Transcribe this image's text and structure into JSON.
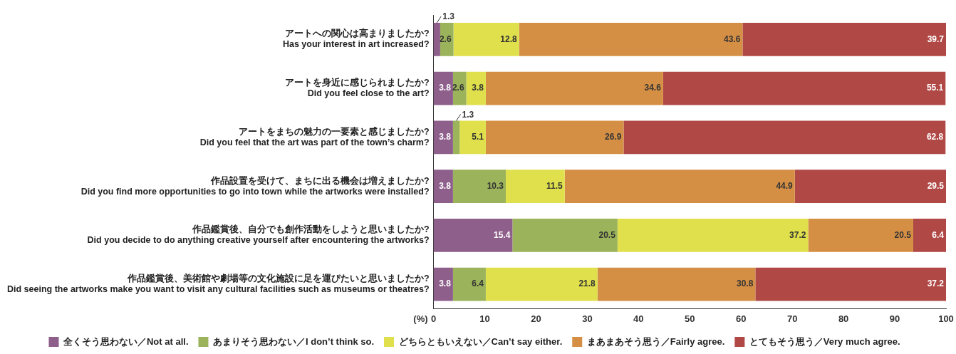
{
  "chart_data": {
    "type": "bar",
    "orientation": "horizontal",
    "stacked": true,
    "categories": [
      "アートへの関心は高まりましたか?\nHas your interest in art increased?",
      "アートを身近に感じられましたか?\nDid you feel close to the art?",
      "アートをまちの魅力の一要素と感じましたか?\nDid you feel that the art was part of the town’s charm?",
      "作品設置を受けて、まちに出る機会は増えましたか?\nDid you find more opportunities to go into town while the artworks were installed?",
      "作品鑑賞後、自分でも創作活動をしようと思いましたか?\nDid you decide to do anything creative yourself after encountering the artworks?",
      "作品鑑賞後、美術館や劇場等の文化施設に足を運びたいと思いましたか?\nDid seeing the artworks make you want to visit any cultural facilities such as museums or theatres?"
    ],
    "series": [
      {
        "name": "全くそう思わない／Not at all.",
        "color": "#8e5f8b",
        "values": [
          1.3,
          3.8,
          3.8,
          3.8,
          15.4,
          3.8
        ]
      },
      {
        "name": "あまりそう思わない／I don’t think so.",
        "color": "#9bb35a",
        "values": [
          2.6,
          2.6,
          1.3,
          10.3,
          20.5,
          6.4
        ]
      },
      {
        "name": "どちらともいえない／Can’t say either.",
        "color": "#dfe04c",
        "values": [
          12.8,
          3.8,
          5.1,
          11.5,
          37.2,
          21.8
        ]
      },
      {
        "name": "まあまあそう思う／Fairly agree.",
        "color": "#d58f45",
        "values": [
          43.6,
          34.6,
          26.9,
          44.9,
          20.5,
          30.8
        ]
      },
      {
        "name": "とてもそう思う／Very much agree.",
        "color": "#b04846",
        "values": [
          39.7,
          55.1,
          62.8,
          29.5,
          6.4,
          37.2
        ]
      }
    ],
    "xlabel": "(%)",
    "xlim": [
      0,
      100
    ],
    "xticks": [
      0,
      10,
      20,
      30,
      40,
      50,
      60,
      70,
      80,
      90,
      100
    ],
    "grid": false,
    "legend": "bottom",
    "data_labels": true
  }
}
